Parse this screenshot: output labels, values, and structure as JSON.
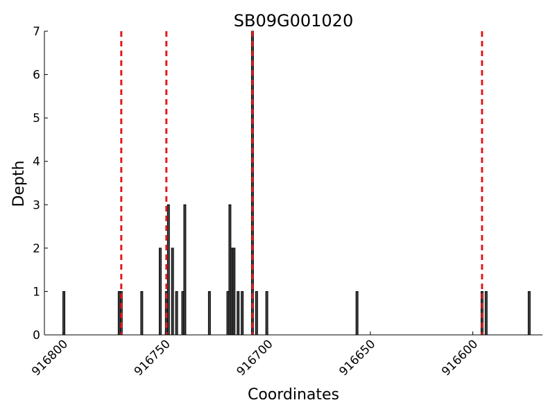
{
  "chart_data": {
    "type": "bar",
    "title": "SB09G001020",
    "xlabel": "Coordinates",
    "ylabel": "Depth",
    "x_reversed": true,
    "xlim": [
      916809,
      916566
    ],
    "ylim": [
      0,
      7
    ],
    "x_ticks": [
      916800,
      916750,
      916700,
      916650,
      916600
    ],
    "y_ticks": [
      0,
      1,
      2,
      3,
      4,
      5,
      6,
      7
    ],
    "bar_width": 1,
    "bars": [
      {
        "x": 916799,
        "y": 1
      },
      {
        "x": 916772,
        "y": 1
      },
      {
        "x": 916771,
        "y": 1
      },
      {
        "x": 916761,
        "y": 1
      },
      {
        "x": 916752,
        "y": 2
      },
      {
        "x": 916749,
        "y": 1
      },
      {
        "x": 916748,
        "y": 3
      },
      {
        "x": 916746,
        "y": 2
      },
      {
        "x": 916744,
        "y": 1
      },
      {
        "x": 916741,
        "y": 1
      },
      {
        "x": 916740,
        "y": 3
      },
      {
        "x": 916728,
        "y": 1
      },
      {
        "x": 916719,
        "y": 1
      },
      {
        "x": 916718,
        "y": 3
      },
      {
        "x": 916717,
        "y": 2
      },
      {
        "x": 916716,
        "y": 2
      },
      {
        "x": 916714,
        "y": 1
      },
      {
        "x": 916712,
        "y": 1
      },
      {
        "x": 916707,
        "y": 7
      },
      {
        "x": 916705,
        "y": 1
      },
      {
        "x": 916700,
        "y": 1
      },
      {
        "x": 916656,
        "y": 1
      },
      {
        "x": 916595,
        "y": 1
      },
      {
        "x": 916593,
        "y": 1
      },
      {
        "x": 916572,
        "y": 1
      }
    ],
    "reference_lines": [
      {
        "x": 916771,
        "style": "dashed",
        "color": "#e31a1c"
      },
      {
        "x": 916749,
        "style": "dashed",
        "color": "#e31a1c"
      },
      {
        "x": 916707,
        "style": "dashed",
        "color": "#e31a1c"
      },
      {
        "x": 916595,
        "style": "dashed",
        "color": "#e31a1c"
      }
    ],
    "bar_fill": "#444444",
    "bar_stroke": "#000000",
    "grid": false
  }
}
